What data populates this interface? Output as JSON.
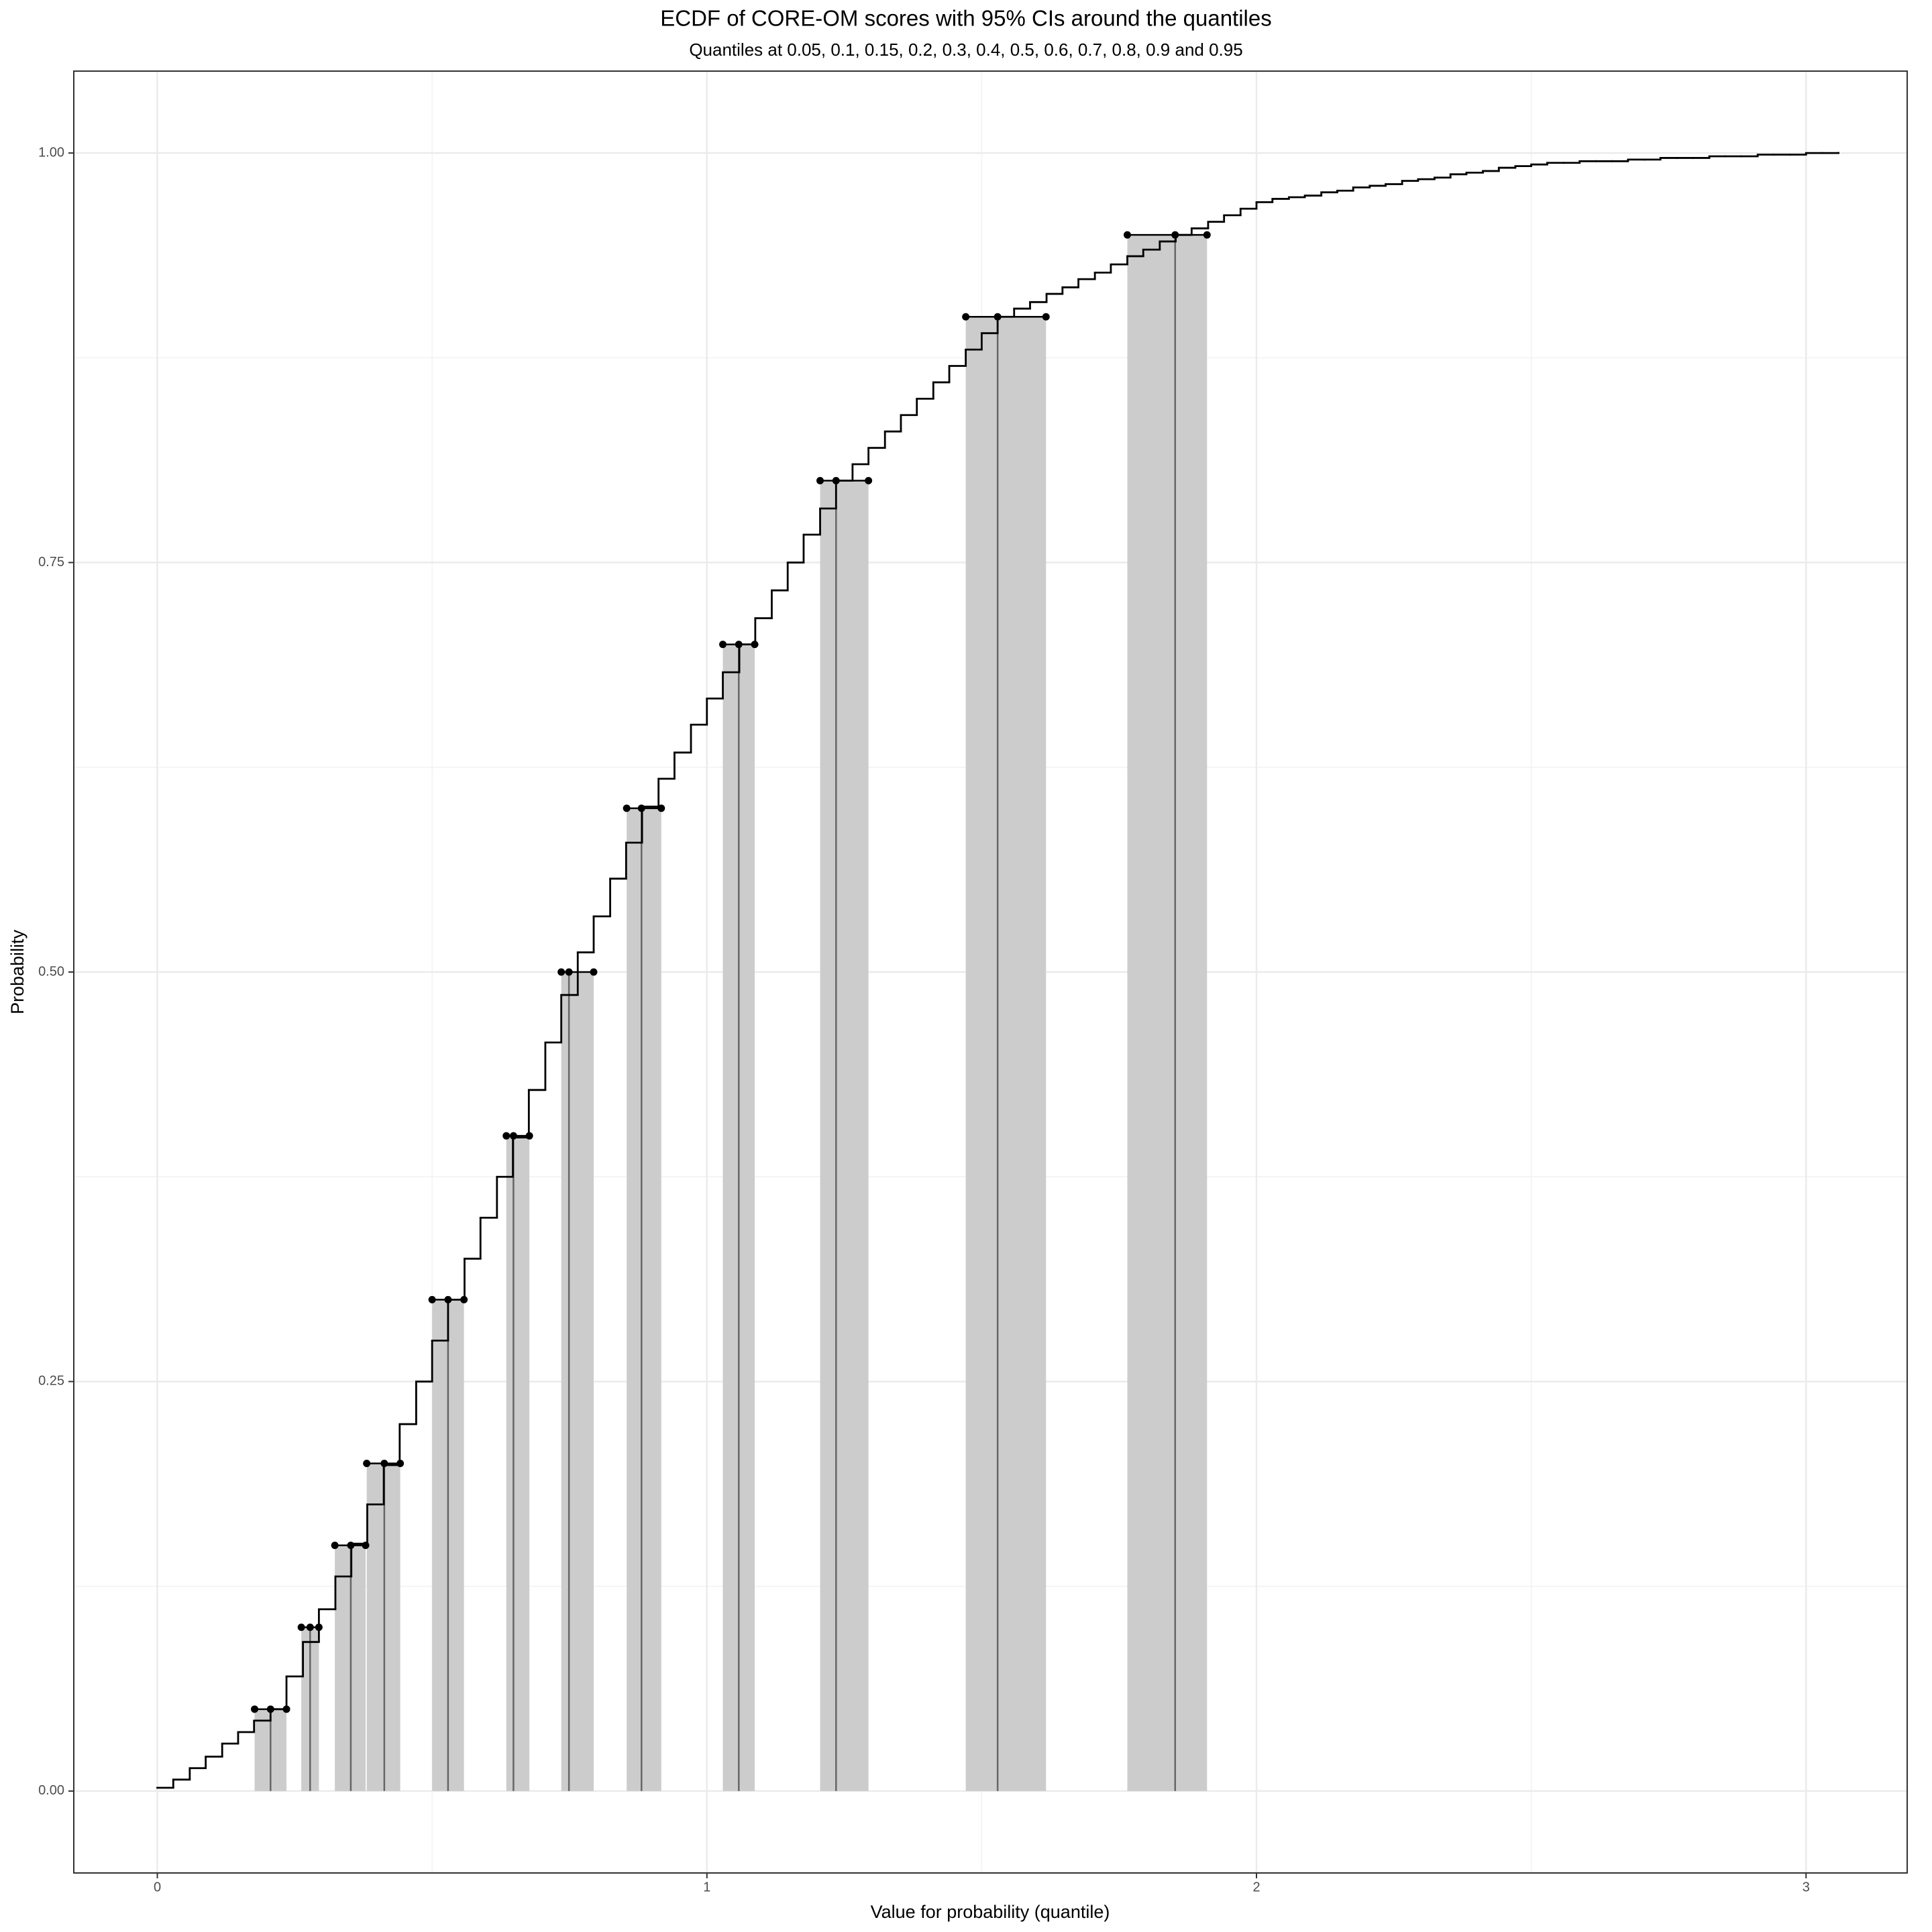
{
  "chart_data": {
    "type": "ecdf",
    "title": "ECDF of CORE-OM scores with 95% CIs around the quantiles",
    "subtitle": "Quantiles at 0.05, 0.1, 0.15, 0.2, 0.3, 0.4, 0.5, 0.6, 0.7, 0.8, 0.9 and 0.95",
    "x_label": "Value for probability (quantile)",
    "y_label": "Probability",
    "x": [
      0,
      0.029,
      0.059,
      0.088,
      0.118,
      0.147,
      0.176,
      0.206,
      0.235,
      0.265,
      0.294,
      0.324,
      0.353,
      0.382,
      0.412,
      0.441,
      0.471,
      0.5,
      0.529,
      0.559,
      0.588,
      0.618,
      0.647,
      0.676,
      0.706,
      0.735,
      0.765,
      0.794,
      0.824,
      0.853,
      0.882,
      0.912,
      0.941,
      0.971,
      1.0,
      1.029,
      1.059,
      1.088,
      1.118,
      1.147,
      1.176,
      1.206,
      1.235,
      1.265,
      1.294,
      1.324,
      1.353,
      1.382,
      1.412,
      1.441,
      1.471,
      1.5,
      1.529,
      1.559,
      1.588,
      1.618,
      1.647,
      1.676,
      1.706,
      1.735,
      1.765,
      1.794,
      1.824,
      1.853,
      1.882,
      1.912,
      1.941,
      1.971,
      2.0,
      2.029,
      2.059,
      2.088,
      2.118,
      2.147,
      2.176,
      2.206,
      2.235,
      2.265,
      2.294,
      2.324,
      2.353,
      2.382,
      2.412,
      2.441,
      2.471,
      2.5,
      2.529,
      2.559,
      2.588,
      2.618,
      2.647,
      2.676,
      2.706,
      2.735,
      2.765,
      2.794,
      2.824,
      2.853,
      2.882,
      2.912,
      2.941,
      2.971,
      3.0,
      3.029,
      3.059
    ],
    "values": [
      0.002,
      0.007,
      0.014,
      0.021,
      0.029,
      0.036,
      0.043,
      0.05,
      0.07,
      0.091,
      0.111,
      0.131,
      0.151,
      0.175,
      0.199,
      0.224,
      0.25,
      0.275,
      0.3,
      0.325,
      0.35,
      0.375,
      0.399,
      0.428,
      0.457,
      0.486,
      0.512,
      0.534,
      0.557,
      0.579,
      0.601,
      0.618,
      0.634,
      0.651,
      0.667,
      0.683,
      0.7,
      0.716,
      0.733,
      0.75,
      0.767,
      0.783,
      0.8,
      0.81,
      0.82,
      0.83,
      0.84,
      0.85,
      0.86,
      0.87,
      0.88,
      0.89,
      0.9,
      0.905,
      0.909,
      0.914,
      0.918,
      0.923,
      0.927,
      0.932,
      0.937,
      0.941,
      0.946,
      0.95,
      0.954,
      0.958,
      0.962,
      0.966,
      0.97,
      0.972,
      0.973,
      0.974,
      0.976,
      0.977,
      0.979,
      0.98,
      0.981,
      0.983,
      0.984,
      0.985,
      0.987,
      0.988,
      0.989,
      0.991,
      0.992,
      0.993,
      0.994,
      0.994,
      0.995,
      0.995,
      0.995,
      0.996,
      0.996,
      0.997,
      0.997,
      0.997,
      0.998,
      0.998,
      0.998,
      0.999,
      0.999,
      0.999,
      1.0,
      1.0,
      1.0
    ],
    "color": "#000000",
    "quantiles": {
      "probs": [
        0.05,
        0.1,
        0.15,
        0.2,
        0.3,
        0.4,
        0.5,
        0.6,
        0.7,
        0.8,
        0.9,
        0.95
      ],
      "lower": [
        0.177,
        0.262,
        0.323,
        0.381,
        0.5,
        0.635,
        0.735,
        0.854,
        1.029,
        1.206,
        1.471,
        1.765
      ],
      "quantile": [
        0.206,
        0.278,
        0.352,
        0.413,
        0.529,
        0.648,
        0.749,
        0.881,
        1.058,
        1.235,
        1.529,
        1.852
      ],
      "upper": [
        0.235,
        0.294,
        0.379,
        0.442,
        0.558,
        0.677,
        0.794,
        0.917,
        1.087,
        1.294,
        1.617,
        1.91
      ],
      "ci_color": "#cccccc",
      "line_color": "#666666"
    },
    "xlim": [
      -0.152,
      3.184
    ],
    "ylim": [
      -0.05,
      1.05
    ],
    "xticks": [
      0,
      1,
      2,
      3
    ],
    "yticks": [
      {
        "value": 0,
        "label": "0.00"
      },
      {
        "value": 0.25,
        "label": "0.25"
      },
      {
        "value": 0.5,
        "label": "0.50"
      },
      {
        "value": 0.75,
        "label": "0.75"
      },
      {
        "value": 1,
        "label": "1.00"
      }
    ],
    "grid": true,
    "minor_grid": true
  }
}
